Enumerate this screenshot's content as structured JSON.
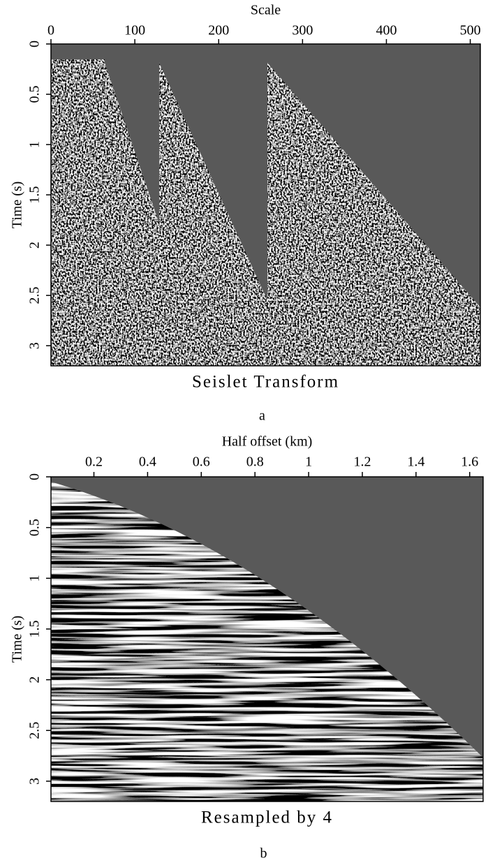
{
  "chart_data": [
    {
      "type": "image",
      "xlabel": "Scale",
      "ylabel": "Time (s)",
      "title": "Seislet Transform",
      "panel_label": "a",
      "xlim": [
        0,
        512
      ],
      "xticks": [
        0,
        100,
        200,
        300,
        400,
        500
      ],
      "ylim": [
        0,
        3.2
      ],
      "yticks": [
        0,
        0.5,
        1,
        1.5,
        2,
        2.5,
        3
      ]
    },
    {
      "type": "image",
      "xlabel": "Half offset (km)",
      "ylabel": "Time (s)",
      "title": "Resampled by 4",
      "panel_label": "b",
      "xlim": [
        0.04,
        1.65
      ],
      "xticks": [
        0.2,
        0.4,
        0.6,
        0.8,
        1,
        1.2,
        1.4,
        1.6
      ],
      "ylim": [
        0,
        3.2
      ],
      "yticks": [
        0,
        0.5,
        1,
        1.5,
        2,
        2.5,
        3
      ]
    }
  ]
}
